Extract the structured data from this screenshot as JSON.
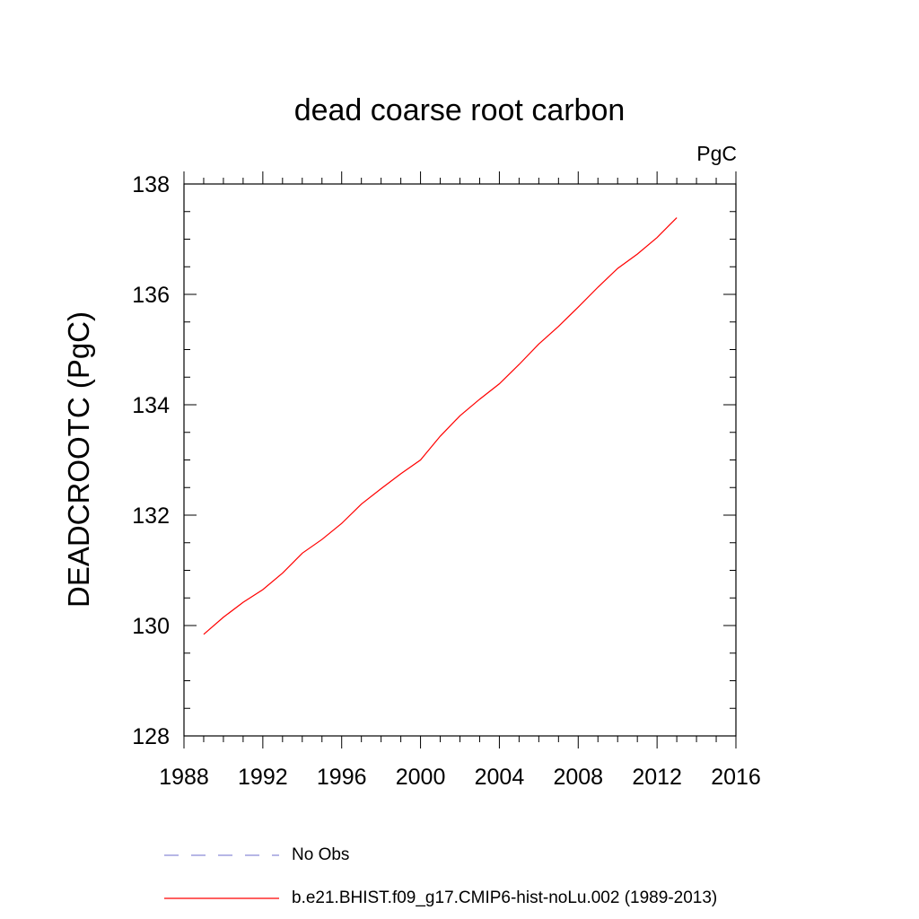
{
  "chart_data": {
    "type": "line",
    "title": "dead coarse root carbon",
    "units_label": "PgC",
    "ylabel": "DEADCROOTC  (PgC)",
    "xlabel": "",
    "xlim": [
      1988,
      2016
    ],
    "ylim": [
      128,
      138
    ],
    "xticks": [
      1988,
      1992,
      1996,
      2000,
      2004,
      2008,
      2012,
      2016
    ],
    "yticks": [
      128,
      130,
      132,
      134,
      136,
      138
    ],
    "grid": false,
    "legend_position": "bottom",
    "series": [
      {
        "name": "No Obs",
        "color": "#8c8cd8",
        "dash": "dashed",
        "x": [],
        "y": []
      },
      {
        "name": "b.e21.BHIST.f09_g17.CMIP6-hist-noLu.002 (1989-2013)",
        "color": "#ff0000",
        "dash": "solid",
        "x": [
          1989,
          1990,
          1991,
          1992,
          1993,
          1994,
          1995,
          1996,
          1997,
          1998,
          1999,
          2000,
          2001,
          2002,
          2003,
          2004,
          2005,
          2006,
          2007,
          2008,
          2009,
          2010,
          2011,
          2012,
          2013
        ],
        "y": [
          129.84,
          130.15,
          130.42,
          130.65,
          130.95,
          131.31,
          131.56,
          131.85,
          132.2,
          132.48,
          132.75,
          133.0,
          133.43,
          133.8,
          134.1,
          134.38,
          134.73,
          135.1,
          135.42,
          135.77,
          136.13,
          136.47,
          136.73,
          137.03,
          137.39
        ]
      }
    ]
  }
}
